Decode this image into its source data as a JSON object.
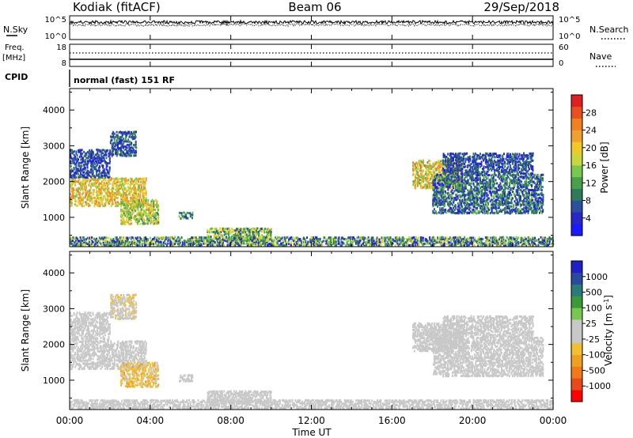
{
  "header": {
    "title": "Kodiak (fitACF)",
    "beam": "Beam 06",
    "date": "29/Sep/2018"
  },
  "top_panels": {
    "nsky_label": "N.Sky",
    "nsky_ticks": [
      "10^5",
      "10^0"
    ],
    "nsearch_label": "N.Search",
    "nsearch_ticks": [
      "10^5",
      "10^0"
    ],
    "freq_label": "Freq.",
    "freq_unit": "[MHz]",
    "freq_ticks": [
      "18",
      "8"
    ],
    "nave_label": "Nave",
    "nave_ticks": [
      "60",
      "0"
    ],
    "cpid_label": "CPID",
    "cpid_value": "normal (fast) 151 RF"
  },
  "colors": {
    "power_scale": [
      "#1a1aff",
      "#2828c8",
      "#2d4fa0",
      "#2f7a5a",
      "#48a048",
      "#78c850",
      "#c8d83c",
      "#f0c828",
      "#f0a030",
      "#f08020",
      "#e85020",
      "#e02020"
    ],
    "velocity_scale": [
      "#ff0000",
      "#e84a1a",
      "#f07a1a",
      "#f0a020",
      "#f0c030",
      "#c8c8c8",
      "#c8c8c8",
      "#78c850",
      "#3a9a3a",
      "#2a7a7a",
      "#2a4aa0",
      "#2020c8"
    ]
  },
  "chart_data": [
    {
      "type": "heatmap",
      "name": "power",
      "ylabel": "Slant Range [km]",
      "xlabel": "",
      "x_ticks": [
        "00:00",
        "04:00",
        "08:00",
        "12:00",
        "16:00",
        "20:00",
        "00:00"
      ],
      "x_range_hours": [
        0,
        24
      ],
      "y_ticks": [
        1000,
        2000,
        3000,
        4000
      ],
      "ylim": [
        180,
        4600
      ],
      "colorbar_label": "Power [dB]",
      "colorbar_ticks": [
        "4",
        "8",
        "12",
        "16",
        "20",
        "24",
        "28"
      ],
      "colorbar_range": [
        0,
        32
      ],
      "regions": [
        {
          "t0": 0.0,
          "t1": 3.8,
          "r0": 1300,
          "r1": 2100,
          "v0": 14,
          "v1": 26
        },
        {
          "t0": 0.0,
          "t1": 2.0,
          "r0": 2100,
          "r1": 2900,
          "v0": 2,
          "v1": 10
        },
        {
          "t0": 2.5,
          "t1": 4.4,
          "r0": 800,
          "r1": 1500,
          "v0": 10,
          "v1": 24
        },
        {
          "t0": 2.0,
          "t1": 3.3,
          "r0": 2700,
          "r1": 3400,
          "v0": 2,
          "v1": 12
        },
        {
          "t0": 5.4,
          "t1": 6.1,
          "r0": 950,
          "r1": 1150,
          "v0": 4,
          "v1": 14
        },
        {
          "t0": 6.8,
          "t1": 10.0,
          "r0": 350,
          "r1": 700,
          "v0": 6,
          "v1": 22
        },
        {
          "t0": 17.0,
          "t1": 19.5,
          "r0": 1800,
          "r1": 2600,
          "v0": 12,
          "v1": 26
        },
        {
          "t0": 18.0,
          "t1": 23.5,
          "r0": 1100,
          "r1": 2200,
          "v0": 2,
          "v1": 14
        },
        {
          "t0": 18.5,
          "t1": 23.0,
          "r0": 2200,
          "r1": 2800,
          "v0": 2,
          "v1": 10
        },
        {
          "t0": 0.0,
          "t1": 24.0,
          "r0": 200,
          "r1": 450,
          "v0": 2,
          "v1": 20
        }
      ]
    },
    {
      "type": "heatmap",
      "name": "velocity",
      "ylabel": "Slant Range [km]",
      "xlabel": "Time UT",
      "x_ticks": [
        "00:00",
        "04:00",
        "08:00",
        "12:00",
        "16:00",
        "20:00",
        "00:00"
      ],
      "x_range_hours": [
        0,
        24
      ],
      "y_ticks": [
        1000,
        2000,
        3000,
        4000
      ],
      "ylim": [
        180,
        4600
      ],
      "colorbar_label": "Velocity [m s^-1]",
      "colorbar_ticks": [
        "1000",
        "500",
        "100",
        "25",
        "-25",
        "-100",
        "-500",
        "-1000"
      ],
      "colorbar_range": [
        -1200,
        1200
      ],
      "regions": [
        {
          "t0": 0.0,
          "t1": 3.8,
          "r0": 1300,
          "r1": 2100,
          "v0": -40,
          "v1": 40
        },
        {
          "t0": 0.0,
          "t1": 2.0,
          "r0": 2100,
          "r1": 2900,
          "v0": -150,
          "v1": 120
        },
        {
          "t0": 2.5,
          "t1": 4.4,
          "r0": 800,
          "r1": 1500,
          "v0": -450,
          "v1": -80
        },
        {
          "t0": 2.0,
          "t1": 3.3,
          "r0": 2700,
          "r1": 3400,
          "v0": -300,
          "v1": 100
        },
        {
          "t0": 5.4,
          "t1": 6.1,
          "r0": 950,
          "r1": 1150,
          "v0": -60,
          "v1": 60
        },
        {
          "t0": 6.8,
          "t1": 10.0,
          "r0": 350,
          "r1": 700,
          "v0": -150,
          "v1": -50
        },
        {
          "t0": 17.0,
          "t1": 19.5,
          "r0": 1800,
          "r1": 2600,
          "v0": -200,
          "v1": 200
        },
        {
          "t0": 18.0,
          "t1": 23.5,
          "r0": 1100,
          "r1": 2200,
          "v0": -40,
          "v1": 40
        },
        {
          "t0": 18.5,
          "t1": 23.0,
          "r0": 2200,
          "r1": 2800,
          "v0": -100,
          "v1": 60
        },
        {
          "t0": 0.0,
          "t1": 24.0,
          "r0": 200,
          "r1": 450,
          "v0": -150,
          "v1": 150
        }
      ]
    }
  ]
}
